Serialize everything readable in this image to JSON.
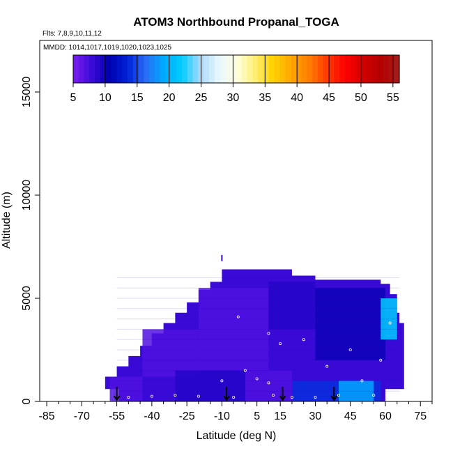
{
  "chart_data": {
    "type": "heatmap",
    "title": "ATOM3 Northbound Propanal_TOGA",
    "flights_text": "Flts: 7,8,9,10,11,12",
    "dates_text": "MMDD: 1014,1017,1019,1020,1023,1025",
    "xlabel": "Latitude (deg N)",
    "ylabel": "Altitude (m)",
    "xlim": [
      -88,
      80
    ],
    "ylim": [
      0,
      17500
    ],
    "x_ticks": [
      -85,
      -70,
      -55,
      -40,
      -25,
      -10,
      5,
      15,
      30,
      45,
      60,
      75
    ],
    "y_ticks": [
      0,
      5000,
      10000,
      15000
    ],
    "colorbar": {
      "ticks": [
        5,
        10,
        15,
        20,
        25,
        30,
        35,
        40,
        45,
        50,
        55
      ],
      "range": [
        5,
        56
      ],
      "colors": [
        "#7a1ef0",
        "#3d0ad8",
        "#0000b0",
        "#0022d8",
        "#2a6cf5",
        "#00aaff",
        "#00ccff",
        "#a8d8ff",
        "#e6f7ff",
        "#ffffe0",
        "#fff07a",
        "#ffd200",
        "#ffa800",
        "#ff7f00",
        "#ff3c00",
        "#ff0000",
        "#d40000",
        "#b30000",
        "#a51c1c"
      ]
    },
    "profile_arrows_lat": [
      -55,
      -8,
      16,
      38
    ],
    "coverage_envelope": [
      {
        "lat": -60,
        "top": 1200
      },
      {
        "lat": -55,
        "top": 1700
      },
      {
        "lat": -50,
        "top": 2200
      },
      {
        "lat": -45,
        "top": 2700
      },
      {
        "lat": -40,
        "top": 3300
      },
      {
        "lat": -35,
        "top": 3800
      },
      {
        "lat": -30,
        "top": 4300
      },
      {
        "lat": -25,
        "top": 4800
      },
      {
        "lat": -20,
        "top": 5400
      },
      {
        "lat": -15,
        "top": 5800
      },
      {
        "lat": -10,
        "top": 6400
      },
      {
        "lat": 0,
        "top": 6400
      },
      {
        "lat": 10,
        "top": 6400
      },
      {
        "lat": 20,
        "top": 6100
      },
      {
        "lat": 30,
        "top": 5900
      },
      {
        "lat": 40,
        "top": 5900
      },
      {
        "lat": 50,
        "top": 5900
      },
      {
        "lat": 58,
        "top": 5700
      },
      {
        "lat": 62,
        "top": 5200
      },
      {
        "lat": 65,
        "top": 4300
      },
      {
        "lat": 66,
        "top": 3800
      }
    ],
    "bottom_lat_range": [
      -46,
      60
    ],
    "surface_lat_range": [
      -54,
      58
    ],
    "isolated_point": {
      "lat": -10,
      "alt": 6800,
      "value": 8
    },
    "cells": [
      {
        "lat0": -58,
        "lat1": -44,
        "alt0": 0,
        "alt1": 1200,
        "value": 7
      },
      {
        "lat0": -44,
        "lat1": -20,
        "alt0": 1200,
        "alt1": 3500,
        "value": 7
      },
      {
        "lat0": -20,
        "lat1": 10,
        "alt0": 1500,
        "alt1": 5500,
        "value": 7
      },
      {
        "lat0": 10,
        "lat1": 30,
        "alt0": 3500,
        "alt1": 5800,
        "value": 9
      },
      {
        "lat0": 30,
        "lat1": 60,
        "alt0": 2000,
        "alt1": 5500,
        "value": 10
      },
      {
        "lat0": -30,
        "lat1": 0,
        "alt0": 0,
        "alt1": 1500,
        "value": 9
      },
      {
        "lat0": 0,
        "lat1": 20,
        "alt0": 0,
        "alt1": 1500,
        "value": 7
      },
      {
        "lat0": 20,
        "lat1": 58,
        "alt0": 0,
        "alt1": 1000,
        "value": 14
      },
      {
        "lat0": 40,
        "lat1": 55,
        "alt0": 0,
        "alt1": 1000,
        "value": 19
      },
      {
        "lat0": 58,
        "lat1": 65,
        "alt0": 3000,
        "alt1": 5000,
        "value": 22
      }
    ],
    "sample_points": [
      {
        "lat": -50,
        "alt": 200
      },
      {
        "lat": -40,
        "alt": 250
      },
      {
        "lat": -30,
        "alt": 300
      },
      {
        "lat": -20,
        "alt": 250
      },
      {
        "lat": -10,
        "alt": 1000
      },
      {
        "lat": -5,
        "alt": 200
      },
      {
        "lat": 0,
        "alt": 1500
      },
      {
        "lat": 5,
        "alt": 1100
      },
      {
        "lat": 10,
        "alt": 900
      },
      {
        "lat": 12,
        "alt": 300
      },
      {
        "lat": 15,
        "alt": 2800
      },
      {
        "lat": 20,
        "alt": 200
      },
      {
        "lat": 25,
        "alt": 3000
      },
      {
        "lat": 30,
        "alt": 200
      },
      {
        "lat": 35,
        "alt": 1700
      },
      {
        "lat": 40,
        "alt": 300
      },
      {
        "lat": 45,
        "alt": 2500
      },
      {
        "lat": 50,
        "alt": 1000
      },
      {
        "lat": 55,
        "alt": 300
      },
      {
        "lat": 58,
        "alt": 2000
      },
      {
        "lat": 62,
        "alt": 3800
      },
      {
        "lat": -3,
        "alt": 4100
      },
      {
        "lat": 10,
        "alt": 3300
      }
    ]
  }
}
